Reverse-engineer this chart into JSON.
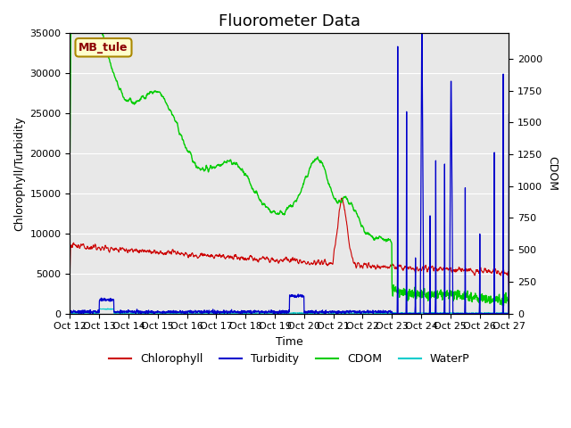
{
  "title": "Fluorometer Data",
  "xlabel": "Time",
  "ylabel_left": "Chlorophyll/Turbidity",
  "ylabel_right": "CDOM",
  "ylim_left": [
    0,
    35000
  ],
  "ylim_right": [
    0,
    2200
  ],
  "xtick_labels": [
    "Oct 12",
    "Oct 13",
    "Oct 14",
    "Oct 15",
    "Oct 16",
    "Oct 17",
    "Oct 18",
    "Oct 19",
    "Oct 20",
    "Oct 21",
    "Oct 22",
    "Oct 23",
    "Oct 24",
    "Oct 25",
    "Oct 26",
    "Oct 27"
  ],
  "annotation_text": "MB_tule",
  "annotation_bbox": {
    "boxstyle": "round,pad=0.3",
    "facecolor": "#ffffcc",
    "edgecolor": "#aa8800"
  },
  "legend_entries": [
    "Chlorophyll",
    "Turbidity",
    "CDOM",
    "WaterP"
  ],
  "legend_colors": [
    "#cc0000",
    "#0000cc",
    "#00cc00",
    "#00cccc"
  ],
  "bg_color": "#e8e8e8",
  "grid_color": "#ffffff",
  "title_fontsize": 13,
  "label_fontsize": 9,
  "tick_fontsize": 8
}
